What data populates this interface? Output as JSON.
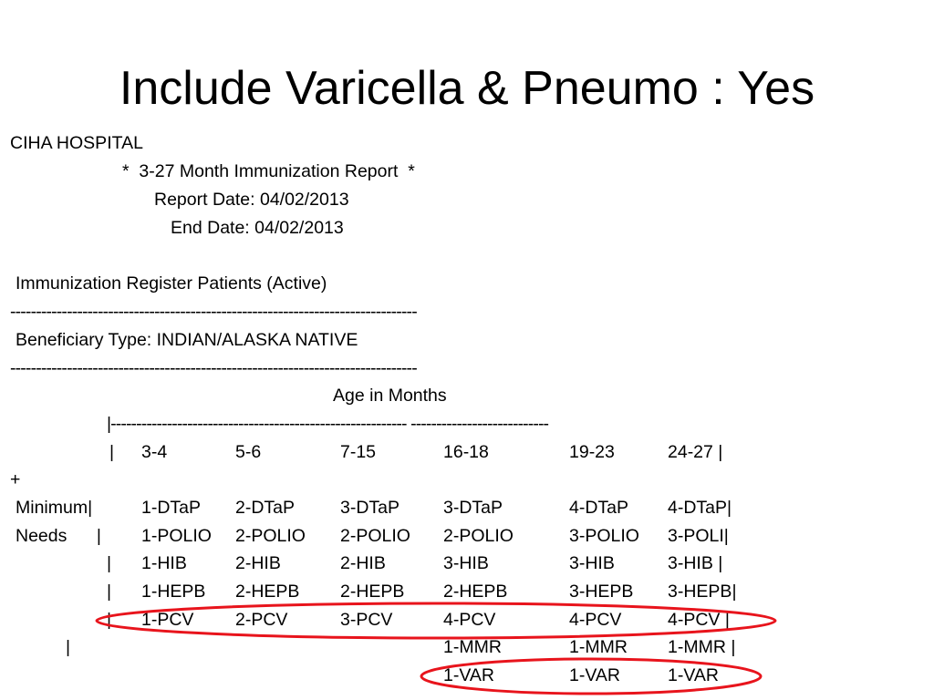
{
  "title": "Include Varicella & Pneumo : Yes",
  "header": {
    "hospital": "CIHA HOSPITAL",
    "report_name": "*  3-27 Month Immunization Report  *",
    "report_date": "Report Date: 04/02/2013",
    "end_date": "End Date: 04/02/2013",
    "register": "Immunization Register Patients (Active)",
    "separator": "-------------------------------------------------------------------------------",
    "beneficiary": "Beneficiary Type: INDIAN/ALASKA NATIVE"
  },
  "table": {
    "age_label": "Age in Months",
    "rule": "|---------------------------------------------------------- ---------------------------",
    "plus": "+",
    "col_headers": [
      "|",
      "3-4",
      "5-6",
      "7-15",
      "16-18",
      "19-23",
      "24-27 |"
    ],
    "rows": [
      {
        "label": "Minimum|",
        "cells": [
          "1-DTaP",
          "2-DTaP",
          "3-DTaP",
          "3-DTaP",
          "4-DTaP",
          "4-DTaP|"
        ]
      },
      {
        "label": "Needs      |",
        "cells": [
          "1-POLIO",
          "2-POLIO",
          "2-POLIO",
          "2-POLIO",
          "3-POLIO",
          "3-POLI|"
        ]
      },
      {
        "label": "|",
        "cells": [
          "1-HIB",
          "2-HIB",
          "2-HIB",
          "3-HIB",
          "3-HIB",
          "3-HIB |"
        ]
      },
      {
        "label": "|",
        "cells": [
          "1-HEPB",
          "2-HEPB",
          "2-HEPB",
          "2-HEPB",
          "3-HEPB",
          "3-HEPB|"
        ]
      },
      {
        "label": "|",
        "cells": [
          "1-PCV",
          "2-PCV",
          "3-PCV",
          "4-PCV",
          "4-PCV",
          "4-PCV |"
        ]
      },
      {
        "label": "|",
        "cells": [
          "",
          "",
          "",
          "1-MMR",
          "1-MMR",
          "1-MMR |"
        ]
      },
      {
        "label": "",
        "cells": [
          "",
          "",
          "",
          "1-VAR",
          "1-VAR",
          "1-VAR"
        ]
      }
    ]
  },
  "highlight_color": "#e8141c"
}
